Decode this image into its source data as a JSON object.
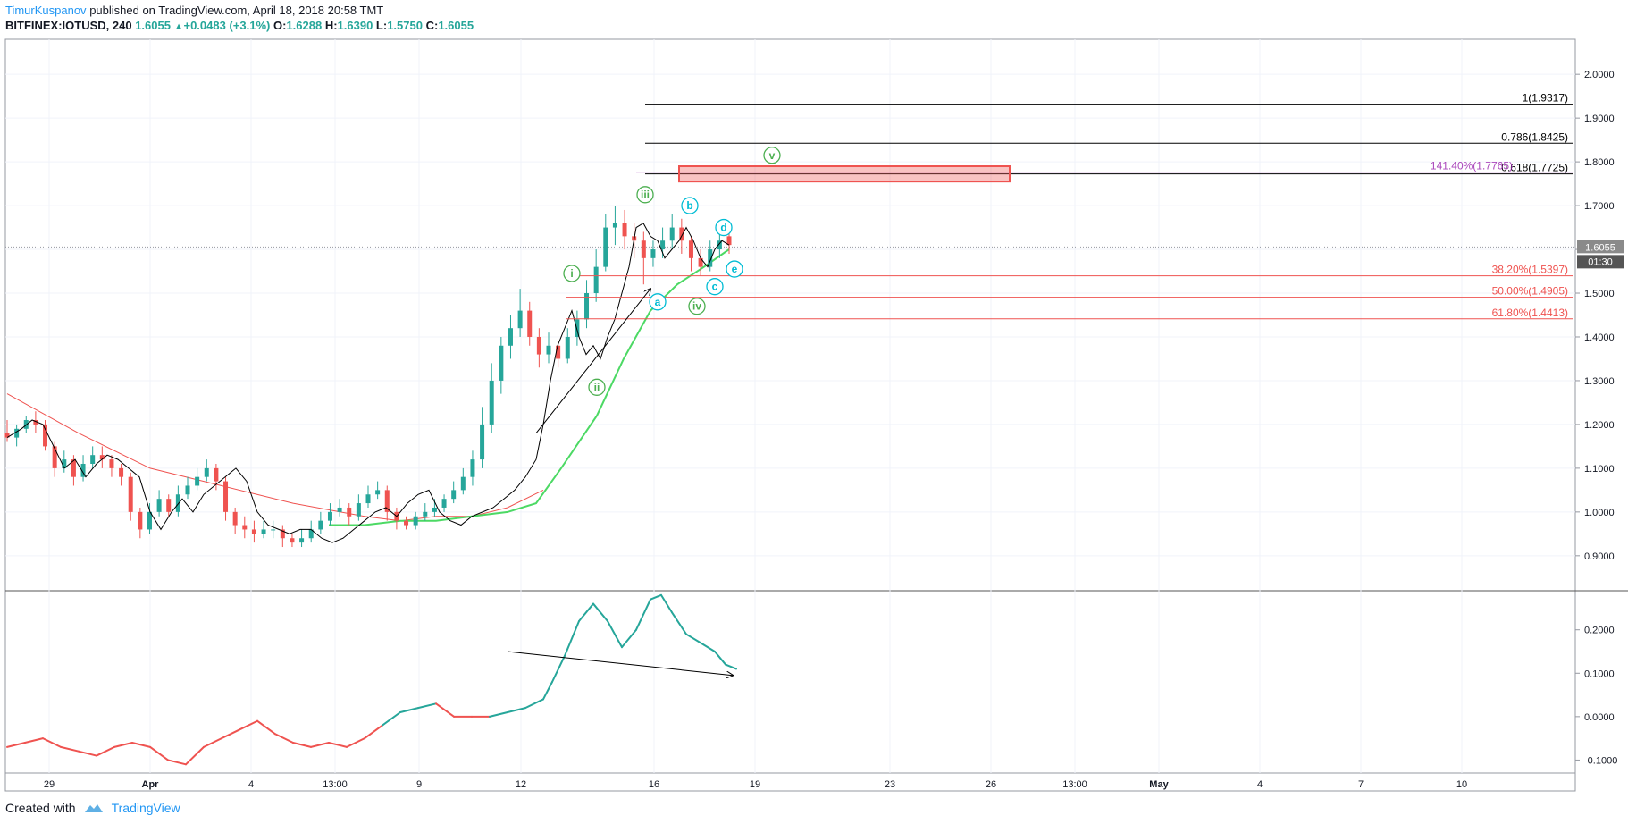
{
  "header": {
    "author": "TimurKuspanov",
    "published": "published on TradingView.com, April 18, 2018 20:58 TMT",
    "symbol": "BITFINEX:IOTUSD, 240",
    "last": "1.6055",
    "change": "+0.0483 (+3.1%)",
    "o_label": "O:",
    "o_value": "1.6288",
    "h_label": "H:",
    "h_value": "1.6390",
    "l_label": "L:",
    "l_value": "1.5750",
    "c_label": "C:",
    "c_value": "1.6055"
  },
  "footer": {
    "created_with": "Created with",
    "brand": "TradingView"
  },
  "colors": {
    "up": "#26a69a",
    "down": "#ef5350",
    "ema_fast": "#000000",
    "ema_red": "#ef5350",
    "ema_green": "#4cd964",
    "fib": "#ef5350",
    "wave_green": "#4caf50",
    "wave_cyan": "#00bcd4",
    "box": "#ef5350",
    "purple": "#9c27b0",
    "osc": "#26a69a"
  },
  "chart_data": [
    {
      "type": "candlestick",
      "title": "BITFINEX:IOTUSD, 240",
      "ylim": [
        0.82,
        2.08
      ],
      "y_ticks": [
        "2.0000",
        "1.9000",
        "1.8000",
        "1.7000",
        "1.6000",
        "1.5000",
        "1.4000",
        "1.3000",
        "1.2000",
        "1.1000",
        "1.0000",
        "0.9000"
      ],
      "x_ticks": [
        "29",
        "Apr",
        "4",
        "13:00",
        "9",
        "12",
        "16",
        "19",
        "23",
        "26",
        "13:00",
        "May",
        "4",
        "7",
        "10"
      ],
      "last_price_label": "1.6055",
      "countdown_label": "01:30",
      "close_path": [
        [
          0,
          1.17
        ],
        [
          8,
          1.19
        ],
        [
          14,
          1.21
        ],
        [
          20,
          1.2
        ],
        [
          26,
          1.15
        ],
        [
          32,
          1.1
        ],
        [
          38,
          1.12
        ],
        [
          44,
          1.08
        ],
        [
          50,
          1.11
        ],
        [
          56,
          1.13
        ],
        [
          62,
          1.12
        ],
        [
          68,
          1.1
        ],
        [
          74,
          1.08
        ],
        [
          80,
          1.0
        ],
        [
          86,
          0.96
        ],
        [
          92,
          1.0
        ],
        [
          98,
          1.03
        ],
        [
          104,
          1.0
        ],
        [
          110,
          1.04
        ],
        [
          116,
          1.06
        ],
        [
          122,
          1.08
        ],
        [
          128,
          1.1
        ],
        [
          134,
          1.07
        ],
        [
          140,
          1.0
        ],
        [
          146,
          0.97
        ],
        [
          152,
          0.96
        ],
        [
          158,
          0.95
        ],
        [
          164,
          0.96
        ],
        [
          170,
          0.96
        ],
        [
          176,
          0.94
        ],
        [
          182,
          0.93
        ],
        [
          188,
          0.94
        ],
        [
          194,
          0.96
        ],
        [
          200,
          0.98
        ],
        [
          206,
          1.0
        ],
        [
          212,
          1.01
        ],
        [
          218,
          0.99
        ],
        [
          224,
          1.02
        ],
        [
          230,
          1.04
        ],
        [
          236,
          1.05
        ],
        [
          242,
          1.0
        ],
        [
          248,
          0.98
        ],
        [
          254,
          0.97
        ],
        [
          260,
          0.99
        ],
        [
          266,
          1.0
        ],
        [
          272,
          1.01
        ],
        [
          278,
          1.03
        ],
        [
          284,
          1.05
        ],
        [
          290,
          1.08
        ],
        [
          296,
          1.12
        ],
        [
          300,
          1.2
        ],
        [
          304,
          1.3
        ],
        [
          308,
          1.38
        ],
        [
          312,
          1.42
        ],
        [
          316,
          1.46
        ],
        [
          320,
          1.4
        ],
        [
          324,
          1.36
        ],
        [
          328,
          1.38
        ],
        [
          332,
          1.35
        ],
        [
          336,
          1.4
        ],
        [
          340,
          1.44
        ],
        [
          344,
          1.5
        ],
        [
          348,
          1.56
        ],
        [
          352,
          1.65
        ],
        [
          356,
          1.66
        ],
        [
          360,
          1.63
        ],
        [
          364,
          1.62
        ],
        [
          368,
          1.58
        ],
        [
          372,
          1.6
        ],
        [
          376,
          1.62
        ],
        [
          380,
          1.65
        ],
        [
          384,
          1.62
        ],
        [
          388,
          1.58
        ],
        [
          392,
          1.56
        ],
        [
          396,
          1.6
        ],
        [
          400,
          1.62
        ],
        [
          404,
          1.61
        ]
      ],
      "candles": [
        [
          1.18,
          1.21,
          1.16,
          1.17
        ],
        [
          1.17,
          1.2,
          1.15,
          1.19
        ],
        [
          1.19,
          1.22,
          1.18,
          1.21
        ],
        [
          1.21,
          1.23,
          1.18,
          1.2
        ],
        [
          1.2,
          1.21,
          1.14,
          1.15
        ],
        [
          1.15,
          1.16,
          1.08,
          1.1
        ],
        [
          1.1,
          1.14,
          1.09,
          1.12
        ],
        [
          1.12,
          1.13,
          1.06,
          1.08
        ],
        [
          1.08,
          1.13,
          1.07,
          1.11
        ],
        [
          1.11,
          1.15,
          1.1,
          1.13
        ],
        [
          1.13,
          1.15,
          1.1,
          1.12
        ],
        [
          1.12,
          1.13,
          1.08,
          1.1
        ],
        [
          1.1,
          1.11,
          1.06,
          1.08
        ],
        [
          1.08,
          1.09,
          0.98,
          1.0
        ],
        [
          1.0,
          1.01,
          0.94,
          0.96
        ],
        [
          0.96,
          1.02,
          0.95,
          1.0
        ],
        [
          1.0,
          1.05,
          0.99,
          1.03
        ],
        [
          1.03,
          1.04,
          0.99,
          1.0
        ],
        [
          1.0,
          1.06,
          0.99,
          1.04
        ],
        [
          1.04,
          1.08,
          1.03,
          1.06
        ],
        [
          1.06,
          1.1,
          1.05,
          1.08
        ],
        [
          1.08,
          1.12,
          1.07,
          1.1
        ],
        [
          1.1,
          1.11,
          1.05,
          1.07
        ],
        [
          1.07,
          1.08,
          0.98,
          1.0
        ],
        [
          1.0,
          1.01,
          0.95,
          0.97
        ],
        [
          0.97,
          0.99,
          0.94,
          0.96
        ],
        [
          0.96,
          0.98,
          0.93,
          0.95
        ],
        [
          0.95,
          0.98,
          0.94,
          0.96
        ],
        [
          0.96,
          0.98,
          0.94,
          0.96
        ],
        [
          0.96,
          0.97,
          0.92,
          0.94
        ],
        [
          0.94,
          0.95,
          0.92,
          0.93
        ],
        [
          0.93,
          0.96,
          0.92,
          0.94
        ],
        [
          0.94,
          0.98,
          0.93,
          0.96
        ],
        [
          0.96,
          1.0,
          0.95,
          0.98
        ],
        [
          0.98,
          1.02,
          0.97,
          1.0
        ],
        [
          1.0,
          1.03,
          0.99,
          1.01
        ],
        [
          1.01,
          1.02,
          0.97,
          0.99
        ],
        [
          0.99,
          1.04,
          0.98,
          1.02
        ],
        [
          1.02,
          1.06,
          1.01,
          1.04
        ],
        [
          1.04,
          1.07,
          1.03,
          1.05
        ],
        [
          1.05,
          1.06,
          0.98,
          1.0
        ],
        [
          1.0,
          1.01,
          0.96,
          0.98
        ],
        [
          0.98,
          0.99,
          0.96,
          0.97
        ],
        [
          0.97,
          1.0,
          0.96,
          0.99
        ],
        [
          0.99,
          1.02,
          0.98,
          1.0
        ],
        [
          1.0,
          1.03,
          0.99,
          1.01
        ],
        [
          1.01,
          1.04,
          1.0,
          1.03
        ],
        [
          1.03,
          1.07,
          1.02,
          1.05
        ],
        [
          1.05,
          1.1,
          1.04,
          1.08
        ],
        [
          1.08,
          1.14,
          1.06,
          1.12
        ],
        [
          1.12,
          1.24,
          1.1,
          1.2
        ],
        [
          1.2,
          1.34,
          1.18,
          1.3
        ],
        [
          1.3,
          1.4,
          1.27,
          1.38
        ],
        [
          1.38,
          1.45,
          1.35,
          1.42
        ],
        [
          1.42,
          1.51,
          1.4,
          1.46
        ],
        [
          1.46,
          1.48,
          1.38,
          1.4
        ],
        [
          1.4,
          1.42,
          1.33,
          1.36
        ],
        [
          1.36,
          1.41,
          1.34,
          1.38
        ],
        [
          1.38,
          1.39,
          1.33,
          1.35
        ],
        [
          1.35,
          1.42,
          1.34,
          1.4
        ],
        [
          1.4,
          1.46,
          1.38,
          1.44
        ],
        [
          1.44,
          1.53,
          1.42,
          1.5
        ],
        [
          1.5,
          1.6,
          1.48,
          1.56
        ],
        [
          1.56,
          1.68,
          1.55,
          1.65
        ],
        [
          1.65,
          1.7,
          1.61,
          1.66
        ],
        [
          1.66,
          1.69,
          1.6,
          1.63
        ],
        [
          1.63,
          1.66,
          1.58,
          1.62
        ],
        [
          1.62,
          1.64,
          1.52,
          1.58
        ],
        [
          1.58,
          1.62,
          1.56,
          1.6
        ],
        [
          1.6,
          1.65,
          1.58,
          1.62
        ],
        [
          1.62,
          1.68,
          1.6,
          1.65
        ],
        [
          1.65,
          1.67,
          1.59,
          1.62
        ],
        [
          1.62,
          1.63,
          1.55,
          1.58
        ],
        [
          1.58,
          1.6,
          1.54,
          1.56
        ],
        [
          1.56,
          1.62,
          1.55,
          1.6
        ],
        [
          1.6,
          1.64,
          1.58,
          1.62
        ],
        [
          1.63,
          1.64,
          1.59,
          1.61
        ]
      ],
      "ema_red_path": [
        [
          0,
          1.27
        ],
        [
          40,
          1.18
        ],
        [
          80,
          1.1
        ],
        [
          120,
          1.06
        ],
        [
          160,
          1.02
        ],
        [
          200,
          0.99
        ],
        [
          220,
          0.98
        ],
        [
          240,
          0.99
        ],
        [
          260,
          0.99
        ],
        [
          280,
          1.01
        ],
        [
          300,
          1.05
        ]
      ],
      "ema_green_path": [
        [
          180,
          0.97
        ],
        [
          200,
          0.97
        ],
        [
          220,
          0.98
        ],
        [
          240,
          0.98
        ],
        [
          260,
          0.99
        ],
        [
          280,
          1.0
        ],
        [
          296,
          1.02
        ],
        [
          310,
          1.1
        ],
        [
          330,
          1.22
        ],
        [
          345,
          1.35
        ],
        [
          360,
          1.46
        ],
        [
          375,
          1.52
        ],
        [
          390,
          1.56
        ],
        [
          404,
          1.6
        ]
      ],
      "fib_levels": [
        {
          "label": "38.20%(1.5397)",
          "value": 1.5397
        },
        {
          "label": "50.00%(1.4905)",
          "value": 1.4905
        },
        {
          "label": "61.80%(1.4413)",
          "value": 1.4413
        }
      ],
      "target_levels": [
        {
          "label": "1(1.9317)",
          "value": 1.9317
        },
        {
          "label": "0.786(1.8425)",
          "value": 1.8425
        },
        {
          "label": "0.618(1.7725)",
          "value": 1.7725
        }
      ],
      "extension_label": "141.40%(1.7765)",
      "extension_value": 1.7765,
      "target_zone": [
        1.755,
        1.79
      ],
      "wave_labels_green": [
        {
          "label": "i",
          "bar": 316,
          "value": 1.545
        },
        {
          "label": "ii",
          "bar": 330,
          "value": 1.285
        },
        {
          "label": "iii",
          "bar": 357,
          "value": 1.725
        },
        {
          "label": "iv",
          "bar": 386,
          "value": 1.47
        },
        {
          "label": "v",
          "bar": 428,
          "value": 1.815
        }
      ],
      "wave_labels_cyan": [
        {
          "label": "a",
          "bar": 364,
          "value": 1.48
        },
        {
          "label": "b",
          "bar": 382,
          "value": 1.7
        },
        {
          "label": "c",
          "bar": 396,
          "value": 1.515
        },
        {
          "label": "d",
          "bar": 401,
          "value": 1.65
        },
        {
          "label": "e",
          "bar": 407,
          "value": 1.555
        }
      ]
    },
    {
      "type": "line",
      "title": "",
      "ylim": [
        -0.13,
        0.29
      ],
      "y_ticks": [
        "0.2000",
        "0.1000",
        "0.0000",
        "-0.1000"
      ],
      "series": [
        {
          "values_path": [
            [
              0,
              -0.07
            ],
            [
              10,
              -0.06
            ],
            [
              20,
              -0.05
            ],
            [
              30,
              -0.07
            ],
            [
              40,
              -0.08
            ],
            [
              50,
              -0.09
            ],
            [
              60,
              -0.07
            ],
            [
              70,
              -0.06
            ],
            [
              80,
              -0.07
            ],
            [
              90,
              -0.1
            ],
            [
              100,
              -0.11
            ],
            [
              110,
              -0.07
            ],
            [
              120,
              -0.05
            ],
            [
              130,
              -0.03
            ],
            [
              140,
              -0.01
            ],
            [
              150,
              -0.04
            ],
            [
              160,
              -0.06
            ],
            [
              170,
              -0.07
            ],
            [
              180,
              -0.06
            ],
            [
              190,
              -0.07
            ],
            [
              200,
              -0.05
            ],
            [
              210,
              -0.02
            ],
            [
              220,
              0.01
            ],
            [
              230,
              0.02
            ],
            [
              240,
              0.03
            ],
            [
              250,
              0.0
            ],
            [
              260,
              0.0
            ],
            [
              270,
              0.0
            ],
            [
              280,
              0.01
            ],
            [
              290,
              0.02
            ],
            [
              300,
              0.04
            ],
            [
              305,
              0.08
            ],
            [
              312,
              0.14
            ],
            [
              320,
              0.22
            ],
            [
              328,
              0.26
            ],
            [
              336,
              0.22
            ],
            [
              344,
              0.16
            ],
            [
              352,
              0.2
            ],
            [
              360,
              0.27
            ],
            [
              366,
              0.28
            ],
            [
              372,
              0.24
            ],
            [
              380,
              0.19
            ],
            [
              388,
              0.17
            ],
            [
              396,
              0.15
            ],
            [
              402,
              0.12
            ],
            [
              408,
              0.11
            ]
          ]
        }
      ],
      "divergence_arrow": [
        [
          280,
          0.15
        ],
        [
          406,
          0.095
        ]
      ]
    }
  ]
}
